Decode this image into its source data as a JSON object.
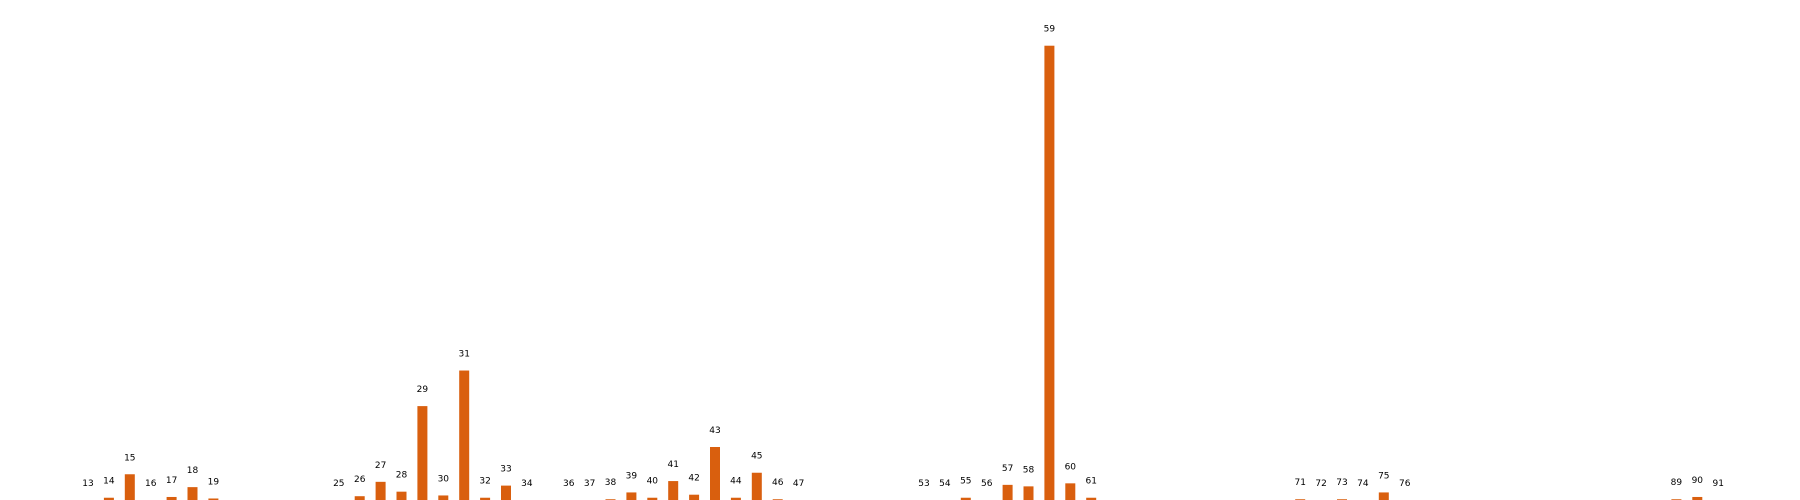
{
  "chart_data": {
    "type": "bar",
    "categories": [
      "13",
      "14",
      "15",
      "16",
      "17",
      "18",
      "19",
      "25",
      "26",
      "27",
      "28",
      "29",
      "30",
      "31",
      "32",
      "33",
      "34",
      "36",
      "37",
      "38",
      "39",
      "40",
      "41",
      "42",
      "43",
      "44",
      "45",
      "46",
      "47",
      "53",
      "54",
      "55",
      "56",
      "57",
      "58",
      "59",
      "60",
      "61",
      "71",
      "72",
      "73",
      "74",
      "75",
      "76",
      "89",
      "90",
      "91"
    ],
    "values": [
      0,
      0.3,
      3.4,
      0,
      0.4,
      1.7,
      0.2,
      0,
      0.5,
      2.4,
      1.1,
      12.4,
      0.6,
      17.1,
      0.3,
      1.9,
      0,
      0,
      0,
      0.1,
      1.0,
      0.3,
      2.5,
      0.7,
      7.0,
      0.3,
      3.6,
      0.1,
      0,
      0,
      0,
      0.3,
      0,
      2.0,
      1.8,
      60.0,
      2.2,
      0.3,
      0.1,
      0,
      0.1,
      0,
      1.0,
      0,
      0.1,
      0.4,
      0
    ],
    "ylim": [
      0,
      63
    ],
    "grid": false,
    "legend": "none",
    "bar_color": "#d95f0e",
    "title": "",
    "xlabel": "",
    "ylabel": ""
  }
}
